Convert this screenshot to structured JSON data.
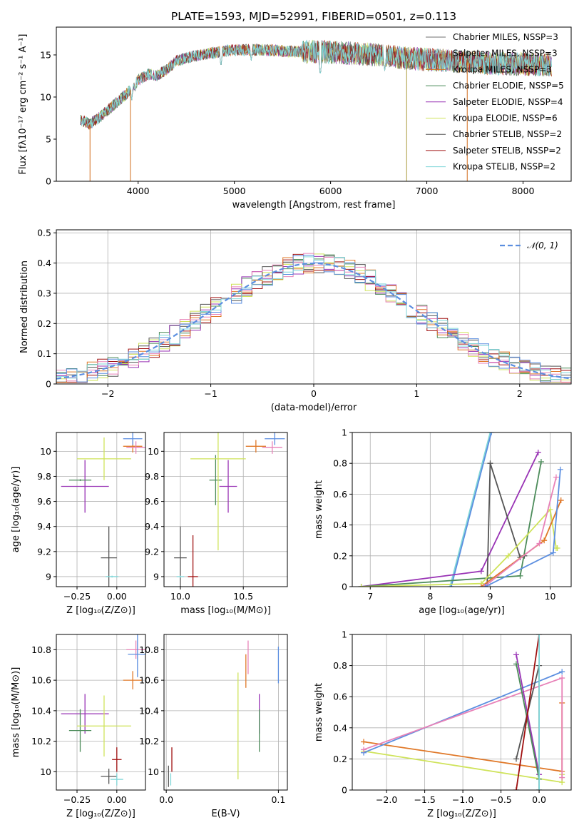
{
  "figure_title": "PLATE=1593, MJD=52991, FIBERID=0501, z=0.113",
  "colors": {
    "chabrier_miles": "#6f6f6f",
    "salpeter_miles": "#9c9c9c",
    "kroupa_miles": "#d26e1e",
    "chabrier_elodie": "#4c8c5a",
    "salpeter_elodie": "#9933b5",
    "kroupa_elodie": "#cfe35a",
    "chabrier_stelib": "#555555",
    "salpeter_stelib": "#a01010",
    "kroupa_stelib": "#7fd6d8",
    "blue": "#5b8ee0",
    "pink": "#e882b8",
    "orange": "#e07828"
  },
  "chart_data": [
    {
      "id": "spectrum",
      "type": "line",
      "xlabel": "wavelength [Angstrom, rest frame]",
      "ylabel": "Flux [fλ10⁻¹⁷ erg cm⁻² s⁻¹ A⁻¹]",
      "xlim": [
        3150,
        8500
      ],
      "ylim": [
        0,
        18.3
      ],
      "xticks": [
        4000,
        5000,
        6000,
        7000,
        8000
      ],
      "yticks": [
        0,
        5,
        10,
        15
      ],
      "grid": false,
      "legend_position": "right",
      "legend": [
        {
          "label": "Chabrier MILES, N_SSP=3",
          "color": "#6f6f6f"
        },
        {
          "label": "Salpeter MILES, N_SSP=3",
          "color": "#9c9c9c"
        },
        {
          "label": "Kroupa MILES, N_SSP=3",
          "color": "#d26e1e"
        },
        {
          "label": "Chabrier ELODIE, N_SSP=5",
          "color": "#4c8c5a"
        },
        {
          "label": "Salpeter ELODIE, N_SSP=4",
          "color": "#9933b5"
        },
        {
          "label": "Kroupa ELODIE, N_SSP=6",
          "color": "#cfe35a"
        },
        {
          "label": "Chabrier STELIB, N_SSP=2",
          "color": "#555555"
        },
        {
          "label": "Salpeter STELIB, N_SSP=2",
          "color": "#a01010"
        },
        {
          "label": "Kroupa STELIB, N_SSP=2",
          "color": "#7fd6d8"
        }
      ],
      "continuum": {
        "x": [
          3400,
          3500,
          3600,
          3700,
          3800,
          3900,
          4000,
          4100,
          4200,
          4300,
          4400,
          4600,
          4800,
          5000,
          5300,
          5600,
          5900,
          6200,
          6500,
          6800,
          7100,
          7400,
          7700,
          8000,
          8300
        ],
        "y": [
          7.3,
          6.8,
          7.6,
          8.6,
          9.6,
          10.6,
          12.0,
          12.7,
          12.6,
          13.3,
          14.3,
          14.9,
          15.3,
          15.6,
          15.6,
          15.4,
          15.4,
          15.2,
          15.0,
          14.6,
          14.4,
          14.2,
          14.0,
          13.9,
          13.8
        ]
      },
      "absorption_dips": [
        {
          "x": 3933,
          "y": 9.5
        },
        {
          "x": 3968,
          "y": 10.5
        },
        {
          "x": 4861,
          "y": 13.5
        },
        {
          "x": 5175,
          "y": 14.2
        },
        {
          "x": 5893,
          "y": 12.5
        },
        {
          "x": 6563,
          "y": 13.0
        }
      ],
      "masked_spikes": [
        {
          "x": 3500,
          "y": 0
        },
        {
          "x": 3920,
          "y": 0
        },
        {
          "x": 6790,
          "y": 0
        },
        {
          "x": 7420,
          "y": 0
        }
      ],
      "noise_start": 5700
    },
    {
      "id": "residuals",
      "type": "histogram",
      "xlabel": "(data-model)/error",
      "ylabel": "Normed distribution",
      "xlim": [
        -2.5,
        2.5
      ],
      "ylim": [
        0,
        0.51
      ],
      "xticks": [
        -2,
        -1,
        0,
        1,
        2
      ],
      "xtick_labels": [
        "−2",
        "−1",
        "0",
        "1",
        "2"
      ],
      "yticks": [
        0.0,
        0.1,
        0.2,
        0.3,
        0.4,
        0.5
      ],
      "grid": true,
      "legend_position": "upper right",
      "gaussian_label": "𝒩(0, 1)",
      "gaussian_color": "#5b8ee0",
      "bin_width": 0.1,
      "series": [
        {
          "color": "#4c8c5a",
          "noise_seed": 1
        },
        {
          "color": "#9933b5",
          "noise_seed": 2
        },
        {
          "color": "#cfe35a",
          "noise_seed": 3
        },
        {
          "color": "#555555",
          "noise_seed": 4
        },
        {
          "color": "#a01010",
          "noise_seed": 5
        },
        {
          "color": "#e07828",
          "noise_seed": 6
        },
        {
          "color": "#e882b8",
          "noise_seed": 7
        },
        {
          "color": "#5b8ee0",
          "noise_seed": 8
        },
        {
          "color": "#7fd6d8",
          "noise_seed": 9
        }
      ]
    },
    {
      "id": "age_vs_Z",
      "type": "scatter",
      "xlabel": "Z [log₁₀(Z/Z⊙)]",
      "ylabel": "age  [log₁₀(age/yr)]",
      "xlim": [
        -0.38,
        0.18
      ],
      "ylim": [
        8.92,
        10.15
      ],
      "xticks": [
        -0.25,
        0.0
      ],
      "xtick_labels": [
        "−0.25",
        "0.00"
      ],
      "yticks": [
        9.0,
        9.2,
        9.4,
        9.6,
        9.8,
        10.0
      ],
      "grid": true,
      "points": [
        {
          "x": -0.2,
          "y": 9.72,
          "xerr": 0.15,
          "yerr": 0.21,
          "color": "#9933b5"
        },
        {
          "x": -0.23,
          "y": 9.77,
          "xerr": 0.07,
          "yerr": 0.0,
          "color": "#4c8c5a"
        },
        {
          "x": -0.08,
          "y": 9.94,
          "xerr": 0.17,
          "yerr": 0.17,
          "color": "#cfe35a"
        },
        {
          "x": -0.05,
          "y": 9.15,
          "xerr": 0.05,
          "yerr": 0.25,
          "color": "#555555"
        },
        {
          "x": -0.03,
          "y": 9.0,
          "xerr": 0.04,
          "yerr": 0.0,
          "color": "#7fd6d8"
        },
        {
          "x": 0.1,
          "y": 10.04,
          "xerr": 0.06,
          "yerr": 0.05,
          "color": "#e07828"
        },
        {
          "x": 0.12,
          "y": 10.03,
          "xerr": 0.06,
          "yerr": 0.05,
          "color": "#e882b8"
        },
        {
          "x": 0.1,
          "y": 10.1,
          "xerr": 0.06,
          "yerr": 0.05,
          "color": "#5b8ee0"
        }
      ]
    },
    {
      "id": "age_vs_mass",
      "type": "scatter",
      "xlabel": "mass [log₁₀(M/M⊙)]",
      "ylabel": "",
      "xlim": [
        9.87,
        10.85
      ],
      "ylim": [
        8.92,
        10.15
      ],
      "xticks": [
        10.0,
        10.5
      ],
      "xtick_labels": [
        "10.0",
        "10.5"
      ],
      "yticks": [
        9.0,
        9.2,
        9.4,
        9.6,
        9.8,
        10.0
      ],
      "grid": true,
      "points": [
        {
          "x": 10.38,
          "y": 9.72,
          "xerr": 0.07,
          "yerr": 0.21,
          "color": "#9933b5"
        },
        {
          "x": 10.28,
          "y": 9.77,
          "xerr": 0.05,
          "yerr": 0.2,
          "color": "#4c8c5a"
        },
        {
          "x": 10.3,
          "y": 9.94,
          "xerr": 0.22,
          "yerr": 0.73,
          "color": "#cfe35a"
        },
        {
          "x": 10.0,
          "y": 9.15,
          "xerr": 0.05,
          "yerr": 0.25,
          "color": "#555555"
        },
        {
          "x": 10.0,
          "y": 9.0,
          "xerr": 0.03,
          "yerr": 0.0,
          "color": "#7fd6d8"
        },
        {
          "x": 10.1,
          "y": 9.0,
          "xerr": 0.04,
          "yerr": 0.33,
          "color": "#a01010"
        },
        {
          "x": 10.6,
          "y": 10.04,
          "xerr": 0.08,
          "yerr": 0.05,
          "color": "#e07828"
        },
        {
          "x": 10.73,
          "y": 10.03,
          "xerr": 0.08,
          "yerr": 0.05,
          "color": "#e882b8"
        },
        {
          "x": 10.75,
          "y": 10.1,
          "xerr": 0.08,
          "yerr": 0.05,
          "color": "#5b8ee0"
        }
      ]
    },
    {
      "id": "weight_vs_age",
      "type": "line",
      "xlabel": "age  [log₁₀(age/yr)]",
      "ylabel": "mass weight",
      "xlim": [
        6.7,
        10.35
      ],
      "ylim": [
        0,
        1.0
      ],
      "xticks": [
        7,
        8,
        9,
        10
      ],
      "yticks": [
        0.0,
        0.2,
        0.4,
        0.6,
        0.8,
        1.0
      ],
      "grid": true,
      "series": [
        {
          "color": "#7fd6d8",
          "x": [
            8.33,
            9.0
          ],
          "y": [
            0.0,
            1.0
          ]
        },
        {
          "color": "#5b8ee0",
          "x": [
            8.35,
            9.02
          ],
          "y": [
            0.0,
            1.0
          ]
        },
        {
          "color": "#9933b5",
          "x": [
            6.85,
            8.85,
            9.8
          ],
          "y": [
            0.0,
            0.1,
            0.87
          ]
        },
        {
          "color": "#555555",
          "x": [
            8.95,
            9.0,
            9.5,
            9.57
          ],
          "y": [
            0.01,
            0.8,
            0.19,
            0.2
          ]
        },
        {
          "color": "#4c8c5a",
          "x": [
            6.85,
            9.5,
            9.85
          ],
          "y": [
            0.0,
            0.07,
            0.81
          ]
        },
        {
          "color": "#cfe35a",
          "x": [
            6.85,
            8.85,
            9.3,
            10.0,
            10.1,
            10.12
          ],
          "y": [
            0.0,
            0.02,
            0.2,
            0.5,
            0.25,
            0.25
          ]
        },
        {
          "color": "#e07828",
          "x": [
            8.85,
            9.9,
            10.18
          ],
          "y": [
            0.0,
            0.3,
            0.56
          ]
        },
        {
          "color": "#e882b8",
          "x": [
            8.9,
            9.82,
            10.1
          ],
          "y": [
            0.0,
            0.28,
            0.71
          ]
        },
        {
          "color": "#5b8ee0",
          "x": [
            8.92,
            10.05,
            10.17
          ],
          "y": [
            0.0,
            0.22,
            0.76
          ]
        }
      ]
    },
    {
      "id": "mass_vs_Z",
      "type": "scatter",
      "xlabel": "Z [log₁₀(Z/Z⊙)]",
      "ylabel": "mass [log₁₀(M/M⊙)]",
      "xlim": [
        -0.38,
        0.18
      ],
      "ylim": [
        9.88,
        10.9
      ],
      "xticks": [
        -0.25,
        0.0
      ],
      "xtick_labels": [
        "−0.25",
        "0.00"
      ],
      "yticks": [
        10.0,
        10.2,
        10.4,
        10.6,
        10.8
      ],
      "grid": true,
      "points": [
        {
          "x": -0.2,
          "y": 10.38,
          "xerr": 0.15,
          "yerr": 0.13,
          "color": "#9933b5"
        },
        {
          "x": -0.23,
          "y": 10.27,
          "xerr": 0.07,
          "yerr": 0.14,
          "color": "#4c8c5a"
        },
        {
          "x": -0.08,
          "y": 10.3,
          "xerr": 0.17,
          "yerr": 0.2,
          "color": "#cfe35a"
        },
        {
          "x": -0.05,
          "y": 9.97,
          "xerr": 0.05,
          "yerr": 0.05,
          "color": "#555555"
        },
        {
          "x": 0.0,
          "y": 10.08,
          "xerr": 0.03,
          "yerr": 0.08,
          "color": "#a01010"
        },
        {
          "x": 0.0,
          "y": 9.95,
          "xerr": 0.04,
          "yerr": 0.04,
          "color": "#7fd6d8"
        },
        {
          "x": 0.1,
          "y": 10.6,
          "xerr": 0.06,
          "yerr": 0.06,
          "color": "#e07828"
        },
        {
          "x": 0.12,
          "y": 10.8,
          "xerr": 0.06,
          "yerr": 0.06,
          "color": "#e882b8"
        },
        {
          "x": 0.13,
          "y": 10.77,
          "xerr": 0.06,
          "yerr": 0.15,
          "color": "#5b8ee0"
        }
      ]
    },
    {
      "id": "mass_vs_EBV",
      "type": "scatter",
      "xlabel": "E(B-V)",
      "ylabel": "",
      "xlim": [
        -0.002,
        0.108
      ],
      "ylim": [
        9.88,
        10.9
      ],
      "xticks": [
        0.0,
        0.1
      ],
      "xtick_labels": [
        "0.0",
        "0.1"
      ],
      "yticks": [
        10.0,
        10.2,
        10.4,
        10.6,
        10.8
      ],
      "grid": true,
      "points": [
        {
          "x": 0.002,
          "y": 9.97,
          "xerr": 0,
          "yerr": 0.07,
          "color": "#555555"
        },
        {
          "x": 0.005,
          "y": 10.08,
          "xerr": 0,
          "yerr": 0.08,
          "color": "#a01010"
        },
        {
          "x": 0.004,
          "y": 9.95,
          "xerr": 0,
          "yerr": 0.04,
          "color": "#7fd6d8"
        },
        {
          "x": 0.064,
          "y": 10.3,
          "xerr": 0,
          "yerr": 0.35,
          "color": "#cfe35a"
        },
        {
          "x": 0.071,
          "y": 10.66,
          "xerr": 0,
          "yerr": 0.11,
          "color": "#e07828"
        },
        {
          "x": 0.073,
          "y": 10.75,
          "xerr": 0,
          "yerr": 0.11,
          "color": "#e882b8"
        },
        {
          "x": 0.083,
          "y": 10.38,
          "xerr": 0,
          "yerr": 0.13,
          "color": "#9933b5"
        },
        {
          "x": 0.083,
          "y": 10.27,
          "xerr": 0,
          "yerr": 0.14,
          "color": "#4c8c5a"
        },
        {
          "x": 0.1,
          "y": 10.7,
          "xerr": 0,
          "yerr": 0.12,
          "color": "#5b8ee0"
        }
      ]
    },
    {
      "id": "weight_vs_Z",
      "type": "line",
      "xlabel": "Z [log₁₀(Z/Z⊙)]",
      "ylabel": "mass weight",
      "xlim": [
        -2.45,
        0.42
      ],
      "ylim": [
        0,
        1.0
      ],
      "xticks": [
        -2.0,
        -1.5,
        -1.0,
        -0.5,
        0.0
      ],
      "xtick_labels": [
        "−2.0",
        "−1.5",
        "−1.0",
        "−0.5",
        "0.0"
      ],
      "yticks": [
        0.0,
        0.2,
        0.4,
        0.6,
        0.8,
        1.0
      ],
      "grid": true,
      "series": [
        {
          "color": "#e07828",
          "x": [
            -2.3,
            0.3,
            0.3
          ],
          "y": [
            0.31,
            0.12,
            0.56
          ]
        },
        {
          "color": "#cfe35a",
          "x": [
            -2.3,
            0.3,
            0.3
          ],
          "y": [
            0.25,
            0.05,
            0.1
          ]
        },
        {
          "color": "#5b8ee0",
          "x": [
            -2.3,
            0.3
          ],
          "y": [
            0.24,
            0.76
          ]
        },
        {
          "color": "#e882b8",
          "x": [
            -2.3,
            0.3,
            0.3
          ],
          "y": [
            0.26,
            0.72,
            0.08
          ]
        },
        {
          "color": "#9933b5",
          "x": [
            -0.3,
            0.0
          ],
          "y": [
            0.87,
            0.1
          ]
        },
        {
          "color": "#4c8c5a",
          "x": [
            -0.3,
            0.0
          ],
          "y": [
            0.81,
            0.07
          ]
        },
        {
          "color": "#555555",
          "x": [
            -0.3,
            0.0,
            0.0
          ],
          "y": [
            0.2,
            0.8,
            0.0
          ]
        },
        {
          "color": "#a01010",
          "x": [
            -0.3,
            0.0
          ],
          "y": [
            0.0,
            1.0
          ]
        },
        {
          "color": "#7fd6d8",
          "x": [
            0.0,
            0.0
          ],
          "y": [
            0.0,
            1.0
          ]
        }
      ]
    }
  ]
}
